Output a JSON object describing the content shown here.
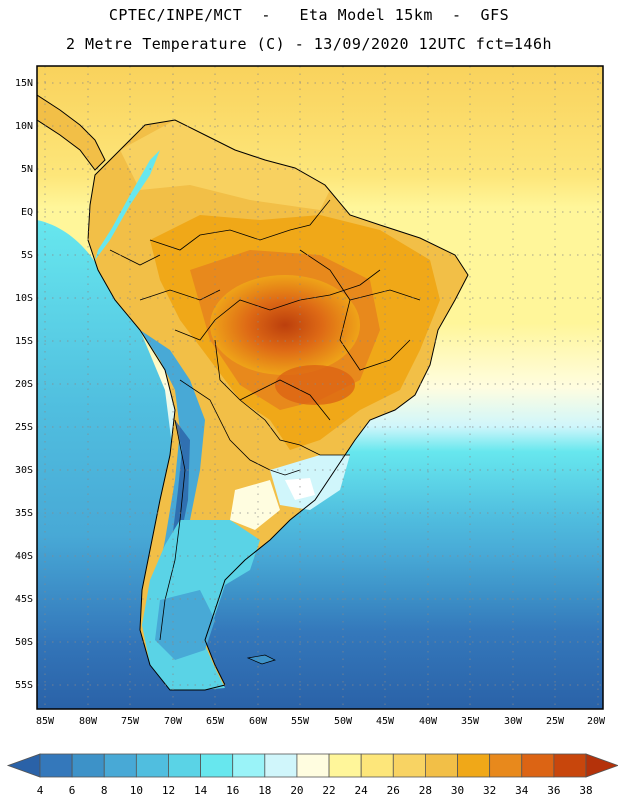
{
  "header": {
    "title_line1": "CPTEC/INPE/MCT  -   Eta Model 15km  -  GFS",
    "title_line2": "2 Metre Temperature (C) - 13/09/2020 12UTC fct=146h"
  },
  "map": {
    "lat_labels": [
      "15N",
      "10N",
      "5N",
      "EQ",
      "5S",
      "10S",
      "15S",
      "20S",
      "25S",
      "30S",
      "35S",
      "40S",
      "45S",
      "50S",
      "55S"
    ],
    "lon_labels": [
      "85W",
      "80W",
      "75W",
      "70W",
      "65W",
      "60W",
      "55W",
      "50W",
      "45W",
      "40W",
      "35W",
      "30W",
      "25W",
      "20W"
    ],
    "lat_range": [
      -58,
      16.5
    ],
    "lon_range": [
      -86,
      -20
    ],
    "grid": "dotted"
  },
  "colorbar": {
    "labels": [
      "4",
      "6",
      "8",
      "10",
      "12",
      "14",
      "16",
      "18",
      "20",
      "22",
      "24",
      "26",
      "28",
      "30",
      "32",
      "34",
      "36",
      "38"
    ],
    "colors": [
      "#2a62a8",
      "#3478bb",
      "#3d92c8",
      "#48a9d6",
      "#50bedf",
      "#5ad3e6",
      "#67e7ee",
      "#9af3f8",
      "#d0f6fb",
      "#fffde0",
      "#fff69a",
      "#fde67a",
      "#f8d363",
      "#f2bf47",
      "#f0a818",
      "#e8891c",
      "#dc6414",
      "#c8460c",
      "#b4320a"
    ]
  }
}
